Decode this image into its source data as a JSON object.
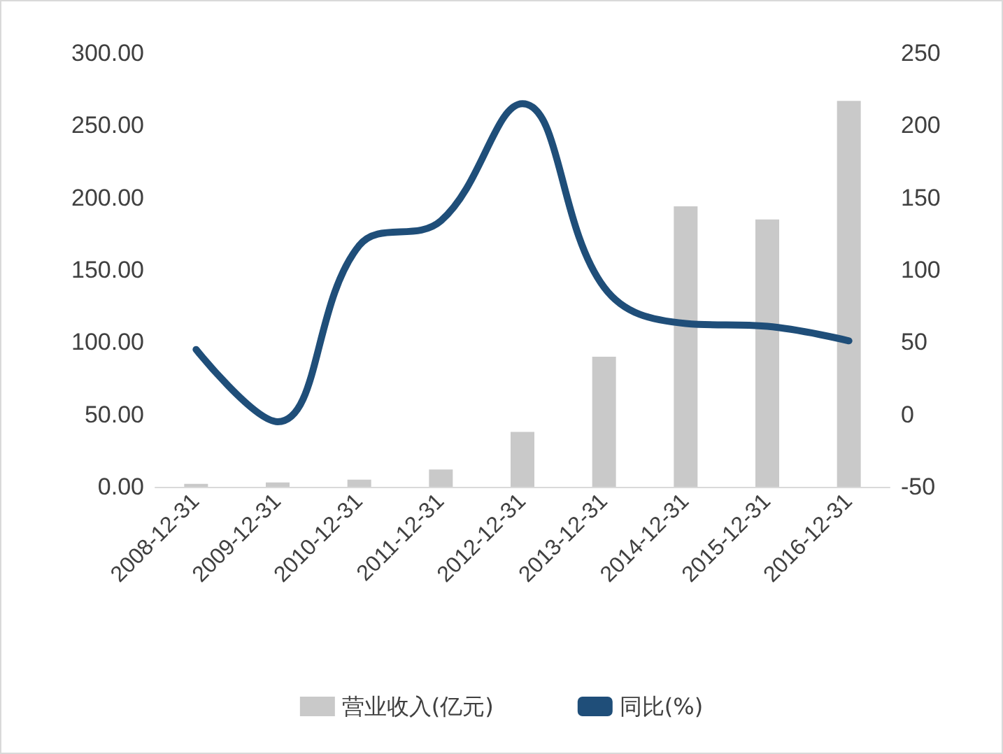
{
  "chart_data": {
    "type": "bar",
    "categories": [
      "2008-12-31",
      "2009-12-31",
      "2010-12-31",
      "2011-12-31",
      "2012-12-31",
      "2013-12-31",
      "2014-12-31",
      "2015-12-31",
      "2016-12-31"
    ],
    "series": [
      {
        "name": "营业收入(亿元)",
        "color": "#c9c9c9",
        "values": [
          2,
          3,
          5,
          12,
          38,
          90,
          194,
          185,
          267
        ]
      },
      {
        "name": "同比(%)",
        "type": "line",
        "axis": "y2",
        "color": "#1f4e79",
        "values": [
          45,
          -5,
          117,
          134,
          215,
          88,
          63,
          61,
          51
        ]
      }
    ],
    "ylim": [
      0,
      300
    ],
    "yticks": [
      {
        "value": 0,
        "label": "0.00"
      },
      {
        "value": 50,
        "label": "50.00"
      },
      {
        "value": 100,
        "label": "100.00"
      },
      {
        "value": 150,
        "label": "150.00"
      },
      {
        "value": 200,
        "label": "200.00"
      },
      {
        "value": 250,
        "label": "250.00"
      },
      {
        "value": 300,
        "label": "300.00"
      }
    ],
    "y2lim": [
      -50,
      250
    ],
    "y2ticks": [
      -50,
      0,
      50,
      100,
      150,
      200,
      250
    ],
    "marker": "none",
    "legend": "bottom",
    "grid": false
  }
}
